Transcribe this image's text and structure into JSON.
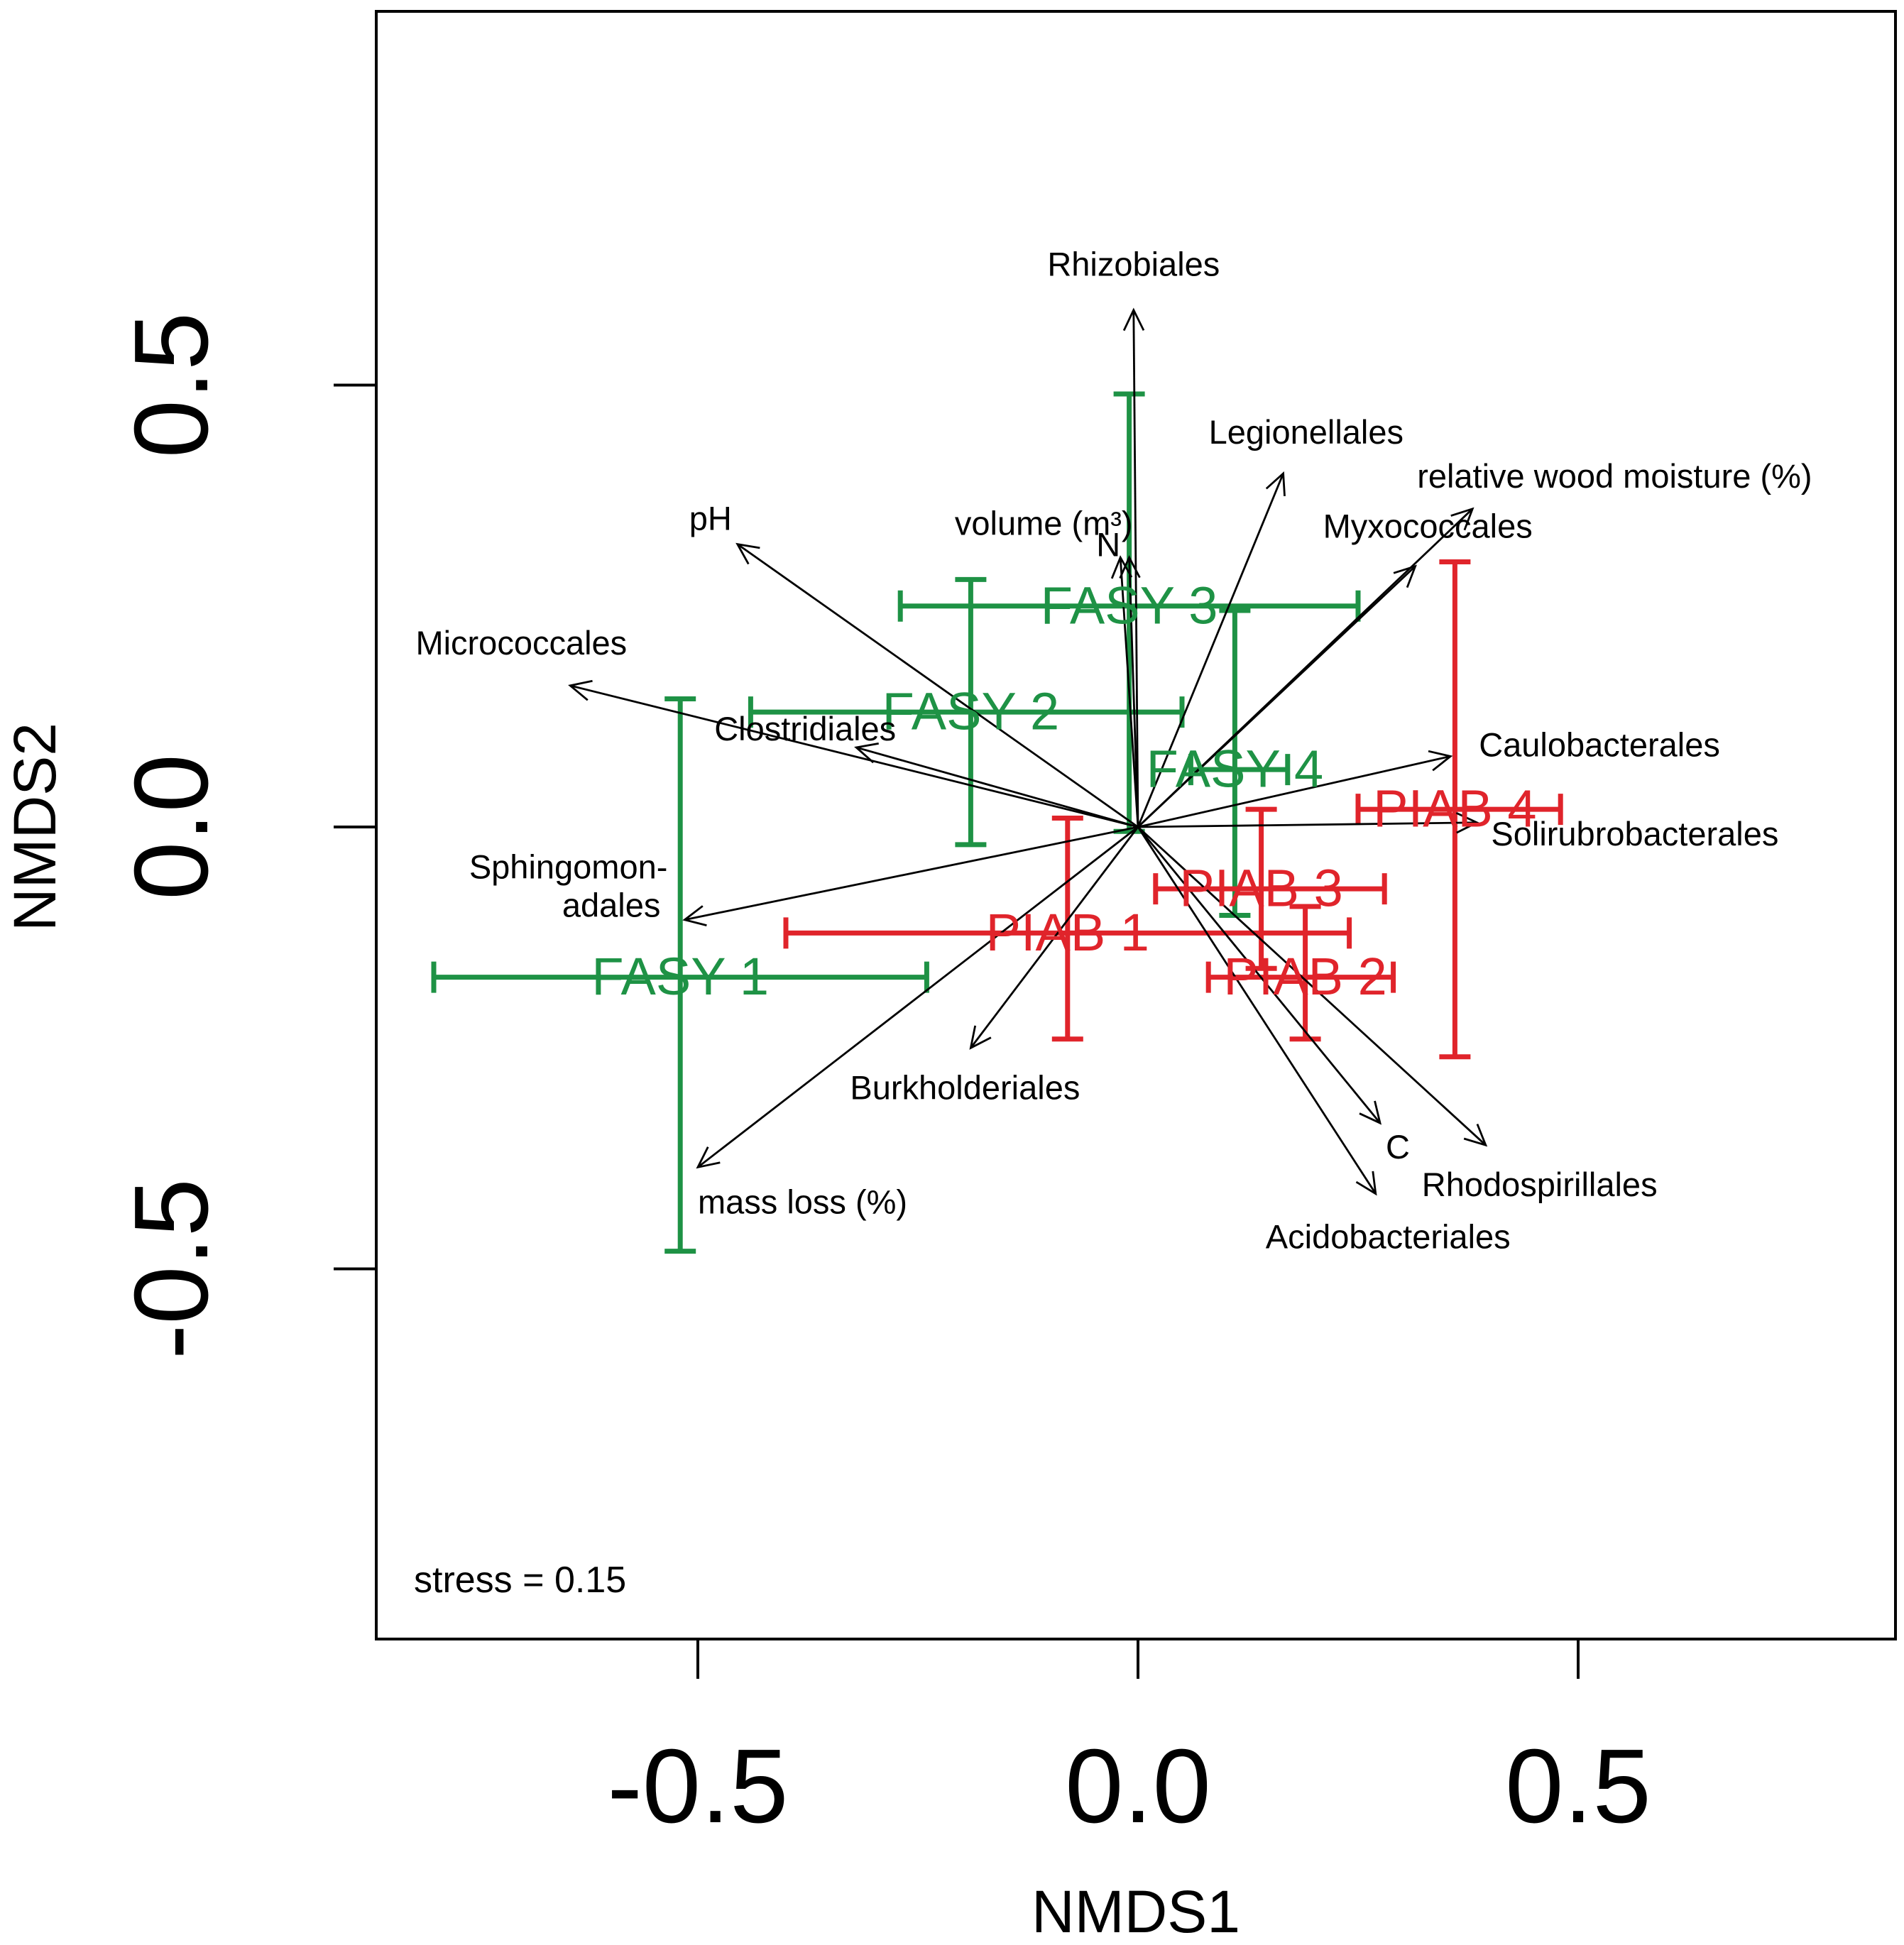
{
  "chart_data": {
    "type": "scatter",
    "subtype": "nmds_ordination_with_fitted_vectors",
    "xlabel": "NMDS1",
    "ylabel": "NMDS2",
    "xlim": [
      -0.87,
      0.87
    ],
    "ylim": [
      -0.92,
      0.92
    ],
    "x_ticks": [
      -0.5,
      0.0,
      0.5
    ],
    "y_ticks": [
      -0.5,
      0.0,
      0.5
    ],
    "x_tick_labels": [
      "-0.5",
      "0.0",
      "0.5"
    ],
    "y_tick_labels": [
      "-0.5",
      "0.0",
      "0.5"
    ],
    "annotation": "stress = 0.15",
    "colors": {
      "FASY": "#1e9245",
      "PIAB": "#e0242b",
      "vector": "#000000",
      "axis": "#000000"
    },
    "groups": [
      {
        "label": "FASY  1",
        "species": "FASY",
        "x": -0.52,
        "y": -0.17,
        "xmin": -0.8,
        "xmax": -0.24,
        "ymin": -0.48,
        "ymax": 0.145
      },
      {
        "label": "FASY  2",
        "species": "FASY",
        "x": -0.19,
        "y": 0.13,
        "xmin": -0.44,
        "xmax": 0.05,
        "ymin": -0.02,
        "ymax": 0.28
      },
      {
        "label": "FASY  3",
        "species": "FASY",
        "x": -0.01,
        "y": 0.25,
        "xmin": -0.27,
        "xmax": 0.25,
        "ymin": -0.005,
        "ymax": 0.49
      },
      {
        "label": "FASY  4",
        "species": "FASY",
        "x": 0.11,
        "y": 0.065,
        "xmin": 0.06,
        "xmax": 0.17,
        "ymin": -0.1,
        "ymax": 0.245
      },
      {
        "label": "PIAB  1",
        "species": "PIAB",
        "x": -0.08,
        "y": -0.12,
        "xmin": -0.4,
        "xmax": 0.24,
        "ymin": -0.24,
        "ymax": 0.01
      },
      {
        "label": "PIAB  2",
        "species": "PIAB",
        "x": 0.19,
        "y": -0.17,
        "xmin": 0.08,
        "xmax": 0.29,
        "ymin": -0.24,
        "ymax": -0.09
      },
      {
        "label": "PIAB  3",
        "species": "PIAB",
        "x": 0.14,
        "y": -0.07,
        "xmin": 0.02,
        "xmax": 0.28,
        "ymin": -0.16,
        "ymax": 0.02
      },
      {
        "label": "PIAB  4",
        "species": "PIAB",
        "x": 0.36,
        "y": 0.02,
        "xmin": 0.25,
        "xmax": 0.48,
        "ymin": -0.26,
        "ymax": 0.3
      }
    ],
    "vectors": [
      {
        "label": "Rhizobiales",
        "x": -0.005,
        "y": 0.585
      },
      {
        "label": "Legionellales",
        "x": 0.165,
        "y": 0.4
      },
      {
        "label": "relative wood moisture (%)",
        "x": 0.38,
        "y": 0.36
      },
      {
        "label": "Myxococcales",
        "x": 0.315,
        "y": 0.295
      },
      {
        "label": "volume (m³)",
        "x": -0.01,
        "y": 0.305
      },
      {
        "label": "N",
        "x": -0.02,
        "y": 0.305
      },
      {
        "label": "pH",
        "x": -0.455,
        "y": 0.32
      },
      {
        "label": "Micrococcales",
        "x": -0.645,
        "y": 0.16
      },
      {
        "label": "Clostridiales",
        "x": -0.32,
        "y": 0.09
      },
      {
        "label": "Sphingomonadales",
        "x": -0.515,
        "y": -0.105
      },
      {
        "label": "Burkholderiales",
        "x": -0.19,
        "y": -0.25
      },
      {
        "label": "mass loss (%)",
        "x": -0.5,
        "y": -0.385
      },
      {
        "label": "Caulobacterales",
        "x": 0.355,
        "y": 0.08
      },
      {
        "label": "Solirubrobacterales",
        "x": 0.385,
        "y": 0.005
      },
      {
        "label": "C",
        "x": 0.275,
        "y": -0.335
      },
      {
        "label": "Rhodospirillales",
        "x": 0.395,
        "y": -0.36
      },
      {
        "label": "Acidobacteriales",
        "x": 0.27,
        "y": -0.415
      }
    ]
  }
}
